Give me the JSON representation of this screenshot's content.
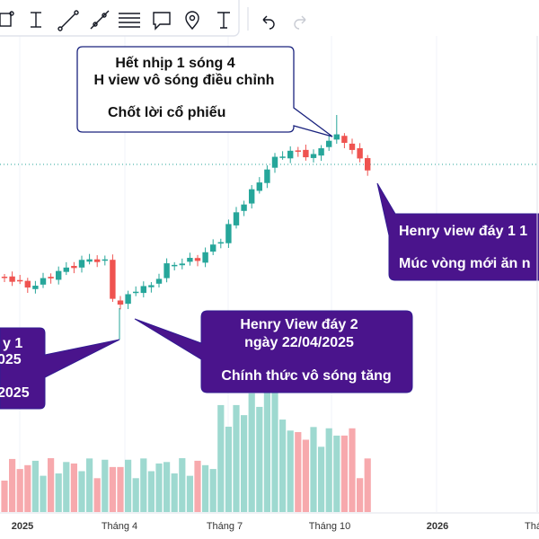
{
  "annotations": [
    {
      "lines": [
        "Hết nhịp 1 sóng 4",
        "H view vô sóng điều chỉnh",
        "Chốt lời cổ phiếu"
      ]
    },
    {
      "lines": [
        "Henry view đáy 1 1",
        "Múc vòng mới ăn n"
      ]
    },
    {
      "lines": [
        "Henry View đáy 2",
        "ngày 22/04/2025",
        "Chính thức vô sóng tăng"
      ]
    },
    {
      "lines": [
        "y 1",
        "025",
        "2025"
      ]
    }
  ],
  "x_axis": {
    "labels": [
      "2025",
      "Tháng 4",
      "Tháng 7",
      "Tháng 10",
      "2026",
      "Tháng"
    ]
  }
}
